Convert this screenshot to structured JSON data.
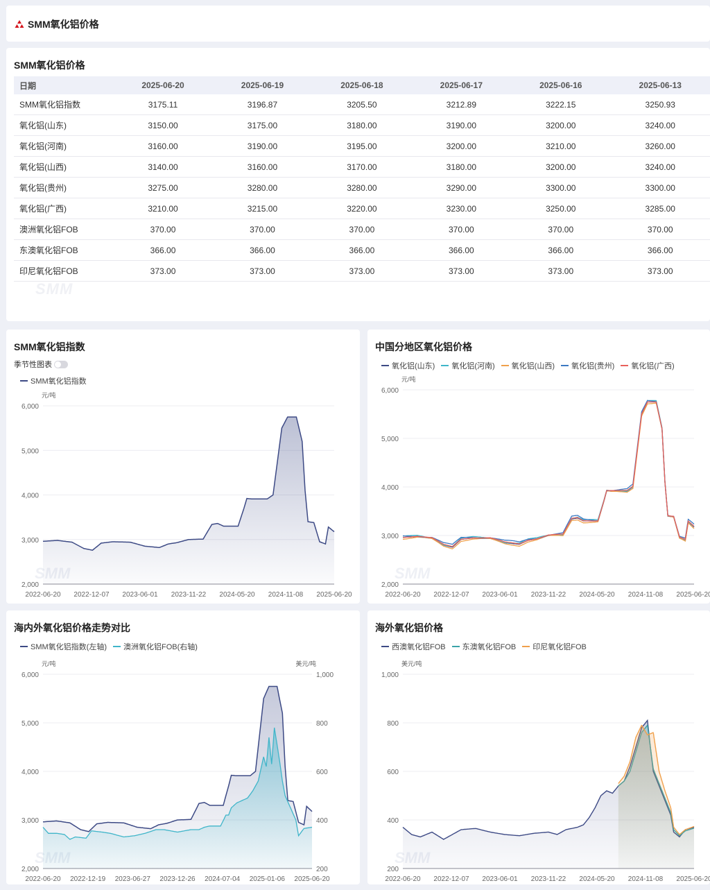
{
  "header": {
    "title": "SMM氧化铝价格"
  },
  "table": {
    "title": "SMM氧化铝价格",
    "columns": [
      "日期",
      "2025-06-20",
      "2025-06-19",
      "2025-06-18",
      "2025-06-17",
      "2025-06-16",
      "2025-06-13"
    ],
    "rows": [
      [
        "SMM氧化铝指数",
        "3175.11",
        "3196.87",
        "3205.50",
        "3212.89",
        "3222.15",
        "3250.93"
      ],
      [
        "氧化铝(山东)",
        "3150.00",
        "3175.00",
        "3180.00",
        "3190.00",
        "3200.00",
        "3240.00"
      ],
      [
        "氧化铝(河南)",
        "3160.00",
        "3190.00",
        "3195.00",
        "3200.00",
        "3210.00",
        "3260.00"
      ],
      [
        "氧化铝(山西)",
        "3140.00",
        "3160.00",
        "3170.00",
        "3180.00",
        "3200.00",
        "3240.00"
      ],
      [
        "氧化铝(贵州)",
        "3275.00",
        "3280.00",
        "3280.00",
        "3290.00",
        "3300.00",
        "3300.00"
      ],
      [
        "氧化铝(广西)",
        "3210.00",
        "3215.00",
        "3220.00",
        "3230.00",
        "3250.00",
        "3285.00"
      ],
      [
        "澳洲氧化铝FOB",
        "370.00",
        "370.00",
        "370.00",
        "370.00",
        "370.00",
        "370.00"
      ],
      [
        "东澳氧化铝FOB",
        "366.00",
        "366.00",
        "366.00",
        "366.00",
        "366.00",
        "366.00"
      ],
      [
        "印尼氧化铝FOB",
        "373.00",
        "373.00",
        "373.00",
        "373.00",
        "373.00",
        "373.00"
      ]
    ]
  },
  "watermark": "SMM",
  "chart1": {
    "title": "SMM氧化铝指数",
    "season_label": "季节性图表",
    "legend": [
      "SMM氧化铝指数"
    ]
  },
  "chart2": {
    "title": "中国分地区氧化铝价格",
    "legend": [
      "氧化铝(山东)",
      "氧化铝(河南)",
      "氧化铝(山西)",
      "氧化铝(贵州)",
      "氧化铝(广西)"
    ]
  },
  "chart3": {
    "title": "海内外氧化铝价格走势对比",
    "legend": [
      "SMM氧化铝指数(左轴)",
      "澳洲氧化铝FOB(右轴)"
    ]
  },
  "chart4": {
    "title": "海外氧化铝价格",
    "legend": [
      "西澳氧化铝FOB",
      "东澳氧化铝FOB",
      "印尼氧化铝FOB"
    ]
  },
  "colors": {
    "navy": "#3d4a85",
    "cyan": "#3fb5c9",
    "orange": "#f0a04b",
    "blue": "#3b78c2",
    "red": "#e8605a",
    "teal": "#3aa3a8"
  },
  "chart_data": [
    {
      "type": "area",
      "title": "SMM氧化铝指数",
      "ylabel": "元/吨",
      "ylim": [
        2000,
        6000
      ],
      "yticks": [
        "2,000",
        "3,000",
        "4,000",
        "5,000",
        "6,000"
      ],
      "xticks": [
        "2022-06-20",
        "2022-12-07",
        "2023-06-01",
        "2023-11-22",
        "2024-05-20",
        "2024-11-08",
        "2025-06-20"
      ],
      "series": [
        {
          "name": "SMM氧化铝指数",
          "x": [
            0,
            0.05,
            0.1,
            0.14,
            0.17,
            0.2,
            0.24,
            0.3,
            0.35,
            0.4,
            0.43,
            0.46,
            0.5,
            0.55,
            0.58,
            0.6,
            0.62,
            0.67,
            0.69,
            0.7,
            0.72,
            0.77,
            0.79,
            0.8,
            0.82,
            0.84,
            0.87,
            0.89,
            0.9,
            0.91,
            0.93,
            0.95,
            0.97,
            0.98,
            1.0
          ],
          "y": [
            2960,
            2980,
            2940,
            2800,
            2760,
            2920,
            2950,
            2940,
            2850,
            2820,
            2900,
            2930,
            3000,
            3010,
            3340,
            3360,
            3300,
            3300,
            3700,
            3920,
            3910,
            3910,
            4000,
            4500,
            5500,
            5750,
            5750,
            5200,
            4100,
            3400,
            3380,
            2950,
            2900,
            3280,
            3175
          ]
        }
      ]
    },
    {
      "type": "line",
      "title": "中国分地区氧化铝价格",
      "ylabel": "元/吨",
      "ylim": [
        2000,
        6000
      ],
      "yticks": [
        "2,000",
        "3,000",
        "4,000",
        "5,000",
        "6,000"
      ],
      "xticks": [
        "2022-06-20",
        "2022-12-07",
        "2023-06-01",
        "2023-11-22",
        "2024-05-20",
        "2024-11-08",
        "2025-06-20"
      ],
      "series": [
        {
          "name": "氧化铝(山东)",
          "y_offset": 0
        },
        {
          "name": "氧化铝(河南)",
          "y_offset": 30
        },
        {
          "name": "氧化铝(山西)",
          "y_offset": -40
        },
        {
          "name": "氧化铝(贵州)",
          "y_offset": 60
        },
        {
          "name": "氧化铝(广西)",
          "y_offset": 20
        }
      ]
    },
    {
      "type": "area",
      "title": "海内外氧化铝价格走势对比",
      "ylabel_left": "元/吨",
      "ylabel_right": "美元/吨",
      "ylim_left": [
        2000,
        6000
      ],
      "ylim_right": [
        200,
        1000
      ],
      "yticks_left": [
        "2,000",
        "3,000",
        "4,000",
        "5,000",
        "6,000"
      ],
      "yticks_right": [
        "200",
        "400",
        "600",
        "800",
        "1,000"
      ],
      "xticks": [
        "2022-06-20",
        "2022-12-19",
        "2023-06-27",
        "2023-12-26",
        "2024-07-04",
        "2025-01-06",
        "2025-06-20"
      ],
      "series": [
        {
          "name": "SMM氧化铝指数(左轴)",
          "axis": "left"
        },
        {
          "name": "澳洲氧化铝FOB(右轴)",
          "axis": "right",
          "x": [
            0,
            0.02,
            0.05,
            0.08,
            0.1,
            0.12,
            0.16,
            0.18,
            0.22,
            0.25,
            0.3,
            0.34,
            0.38,
            0.42,
            0.45,
            0.5,
            0.55,
            0.58,
            0.6,
            0.62,
            0.66,
            0.68,
            0.69,
            0.7,
            0.72,
            0.74,
            0.76,
            0.78,
            0.8,
            0.82,
            0.83,
            0.84,
            0.85,
            0.86,
            0.88,
            0.89,
            0.9,
            0.92,
            0.94,
            0.95,
            0.97,
            1.0
          ],
          "y": [
            370,
            345,
            345,
            340,
            320,
            330,
            325,
            355,
            350,
            345,
            330,
            335,
            345,
            360,
            360,
            350,
            360,
            360,
            370,
            375,
            375,
            420,
            420,
            450,
            470,
            480,
            490,
            520,
            560,
            660,
            620,
            740,
            630,
            780,
            640,
            560,
            500,
            450,
            400,
            335,
            365,
            370
          ]
        }
      ]
    },
    {
      "type": "area",
      "title": "海外氧化铝价格",
      "ylabel": "美元/吨",
      "ylim": [
        200,
        1000
      ],
      "yticks": [
        "200",
        "400",
        "600",
        "800",
        "1,000"
      ],
      "xticks": [
        "2022-06-20",
        "2022-12-07",
        "2023-06-01",
        "2023-11-22",
        "2024-05-20",
        "2024-11-08",
        "2025-06-20"
      ],
      "series": [
        {
          "name": "西澳氧化铝FOB",
          "x": [
            0,
            0.03,
            0.06,
            0.1,
            0.14,
            0.17,
            0.2,
            0.25,
            0.3,
            0.35,
            0.4,
            0.45,
            0.5,
            0.53,
            0.56,
            0.6,
            0.62,
            0.64,
            0.66,
            0.68,
            0.7,
            0.72,
            0.74,
            0.76,
            0.78,
            0.8,
            0.82,
            0.84,
            0.85,
            0.86,
            0.88,
            0.9,
            0.92,
            0.93,
            0.95,
            0.97,
            1.0
          ],
          "y": [
            370,
            340,
            330,
            350,
            320,
            340,
            360,
            365,
            350,
            340,
            335,
            345,
            350,
            340,
            360,
            370,
            380,
            410,
            450,
            500,
            520,
            510,
            540,
            560,
            620,
            700,
            780,
            810,
            700,
            600,
            540,
            480,
            420,
            350,
            330,
            360,
            370
          ]
        },
        {
          "name": "东澳氧化铝FOB",
          "x": [
            0.74,
            0.76,
            0.78,
            0.8,
            0.82,
            0.84,
            0.85,
            0.86,
            0.88,
            0.9,
            0.92,
            0.93,
            0.95,
            0.97,
            1.0
          ],
          "y": [
            540,
            560,
            600,
            680,
            760,
            790,
            700,
            610,
            550,
            490,
            430,
            360,
            335,
            355,
            366
          ]
        },
        {
          "name": "印尼氧化铝FOB",
          "x": [
            0.74,
            0.76,
            0.78,
            0.8,
            0.82,
            0.84,
            0.86,
            0.88,
            0.9,
            0.92,
            0.93,
            0.95,
            0.97,
            1.0
          ],
          "y": [
            550,
            580,
            640,
            740,
            790,
            750,
            760,
            600,
            520,
            450,
            370,
            340,
            360,
            373
          ]
        }
      ]
    }
  ]
}
